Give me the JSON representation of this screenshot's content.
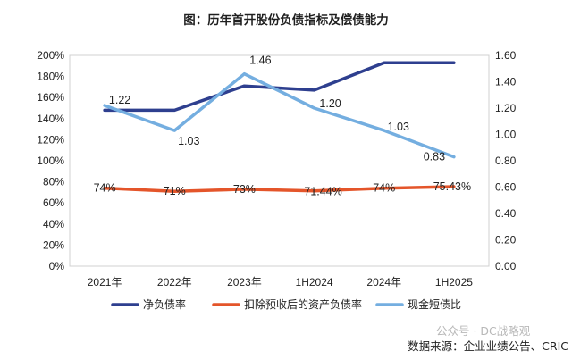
{
  "chart_data": {
    "type": "line",
    "title": "图：历年首开股份负债指标及偿债能力",
    "categories": [
      "2021年",
      "2022年",
      "2023年",
      "1H2024",
      "2024年",
      "1H2025"
    ],
    "y_left": {
      "ticks": [
        "0%",
        "20%",
        "40%",
        "60%",
        "80%",
        "100%",
        "120%",
        "140%",
        "160%",
        "180%",
        "200%"
      ],
      "min": 0,
      "max": 200
    },
    "y_right": {
      "ticks": [
        "0.00",
        "0.20",
        "0.40",
        "0.60",
        "0.80",
        "1.00",
        "1.20",
        "1.40",
        "1.60"
      ],
      "min": 0,
      "max": 1.6
    },
    "series": [
      {
        "name": "净负债率",
        "axis": "left",
        "color": "#2e3f8f",
        "values": [
          148,
          148,
          171,
          167,
          193,
          193
        ],
        "labels": [
          "",
          "",
          "",
          "",
          "",
          ""
        ]
      },
      {
        "name": "扣除预收后的资产负债率",
        "axis": "left",
        "color": "#e4552a",
        "values": [
          74,
          71,
          73,
          71.44,
          74,
          75.43
        ],
        "labels": [
          "74%",
          "71%",
          "73%",
          "71.44%",
          "74%",
          "75.43%"
        ]
      },
      {
        "name": "现金短债比",
        "axis": "right",
        "color": "#74aee0",
        "values": [
          1.22,
          1.03,
          1.46,
          1.2,
          1.03,
          0.83
        ],
        "labels": [
          "1.22",
          "1.03",
          "1.46",
          "1.20",
          "1.03",
          "0.83"
        ]
      }
    ],
    "grid": false,
    "legend": "bottom"
  },
  "source": "数据来源：企业业绩公告、CRIC",
  "watermark": "公众号 · DC战略观"
}
